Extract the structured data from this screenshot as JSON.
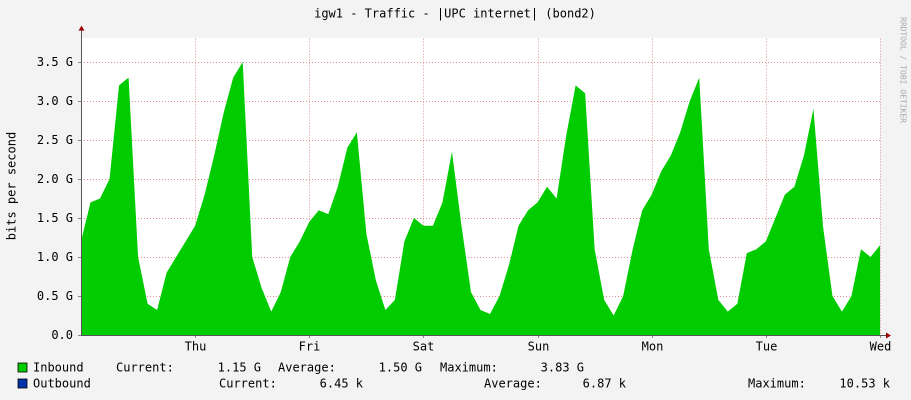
{
  "chart_data": {
    "type": "area",
    "title": "igw1 - Traffic - |UPC internet| (bond2)",
    "y_label": "bits per second",
    "watermark": "RRDTOOL / TOBI OETIKER",
    "x": [
      0,
      2,
      4,
      6,
      8,
      10,
      12,
      14,
      16,
      18,
      20,
      22,
      24,
      26,
      28,
      30,
      32,
      34,
      36,
      38,
      40,
      42,
      44,
      46,
      48,
      50,
      52,
      54,
      56,
      58,
      60,
      62,
      64,
      66,
      68,
      70,
      72,
      74,
      76,
      78,
      80,
      82,
      84,
      86,
      88,
      90,
      92,
      94,
      96,
      98,
      100,
      102,
      104,
      106,
      108,
      110,
      112,
      114,
      116,
      118,
      120,
      122,
      124,
      126,
      128,
      130,
      132,
      134,
      136,
      138,
      140,
      142,
      144,
      146,
      148,
      150,
      152,
      154,
      156,
      158,
      160,
      162,
      164,
      166,
      168
    ],
    "series": [
      {
        "name": "Inbound",
        "color": "#00cc00",
        "values": [
          1.2,
          1.7,
          1.75,
          2.0,
          3.2,
          3.3,
          1.0,
          0.4,
          0.32,
          0.8,
          1.0,
          1.2,
          1.4,
          1.8,
          2.3,
          2.85,
          3.3,
          3.5,
          1.0,
          0.6,
          0.3,
          0.55,
          1.0,
          1.2,
          1.45,
          1.6,
          1.55,
          1.9,
          2.4,
          2.6,
          1.3,
          0.7,
          0.32,
          0.45,
          1.2,
          1.5,
          1.4,
          1.4,
          1.7,
          2.35,
          1.4,
          0.55,
          0.32,
          0.27,
          0.5,
          0.9,
          1.4,
          1.6,
          1.7,
          1.9,
          1.75,
          2.55,
          3.2,
          3.1,
          1.1,
          0.45,
          0.25,
          0.5,
          1.1,
          1.6,
          1.8,
          2.1,
          2.3,
          2.6,
          3.0,
          3.3,
          1.1,
          0.45,
          0.3,
          0.4,
          1.05,
          1.1,
          1.2,
          1.5,
          1.8,
          1.9,
          2.3,
          2.9,
          1.4,
          0.5,
          0.3,
          0.5,
          1.1,
          1.0,
          1.15
        ]
      },
      {
        "name": "Outbound",
        "color": "#0033aa"
      }
    ],
    "legend_stats": [
      [
        {
          "label": "Current:",
          "value": "1.15 G"
        },
        {
          "label": "Average:",
          "value": "1.50 G"
        },
        {
          "label": "Maximum:",
          "value": "3.83 G"
        }
      ],
      [
        {
          "label": "Current:",
          "value": "6.45 k"
        },
        {
          "label": "Average:",
          "value": "6.87 k"
        },
        {
          "label": "Maximum:",
          "value": "10.53 k"
        }
      ]
    ],
    "xlim": [
      0,
      168
    ],
    "xticks": [
      {
        "value": 24,
        "label": "Thu"
      },
      {
        "value": 48,
        "label": "Fri"
      },
      {
        "value": 72,
        "label": "Sat"
      },
      {
        "value": 96,
        "label": "Sun"
      },
      {
        "value": 120,
        "label": "Mon"
      },
      {
        "value": 144,
        "label": "Tue"
      },
      {
        "value": 168,
        "label": "Wed"
      }
    ],
    "ylim": [
      0,
      3.8
    ],
    "yticks": [
      {
        "value": 0,
        "label": "0.0"
      },
      {
        "value": 0.5,
        "label": "0.5 G"
      },
      {
        "value": 1,
        "label": "1.0 G"
      },
      {
        "value": 1.5,
        "label": "1.5 G"
      },
      {
        "value": 2,
        "label": "2.0 G"
      },
      {
        "value": 2.5,
        "label": "2.5 G"
      },
      {
        "value": 3,
        "label": "3.0 G"
      },
      {
        "value": 3.5,
        "label": "3.5 G"
      }
    ],
    "grid": true
  }
}
